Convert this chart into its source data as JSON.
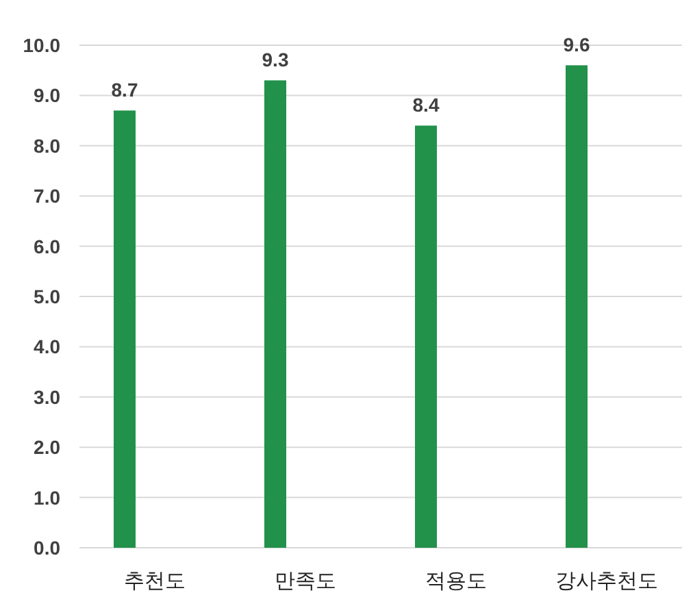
{
  "chart_data": {
    "type": "bar",
    "categories": [
      "추천도",
      "만족도",
      "적용도",
      "강사추천도"
    ],
    "values": [
      8.7,
      9.3,
      8.4,
      9.6
    ],
    "color": "#22914a",
    "data_labels": true,
    "grid": "y",
    "ylim": [
      0,
      10
    ],
    "yticks": [
      {
        "value": 0,
        "label": "0.0"
      },
      {
        "value": 1,
        "label": "1.0"
      },
      {
        "value": 2,
        "label": "2.0"
      },
      {
        "value": 3,
        "label": "3.0"
      },
      {
        "value": 4,
        "label": "4.0"
      },
      {
        "value": 5,
        "label": "5.0"
      },
      {
        "value": 6,
        "label": "6.0"
      },
      {
        "value": 7,
        "label": "7.0"
      },
      {
        "value": 8,
        "label": "8.0"
      },
      {
        "value": 9,
        "label": "9.0"
      },
      {
        "value": 10,
        "label": "10.0"
      }
    ]
  }
}
